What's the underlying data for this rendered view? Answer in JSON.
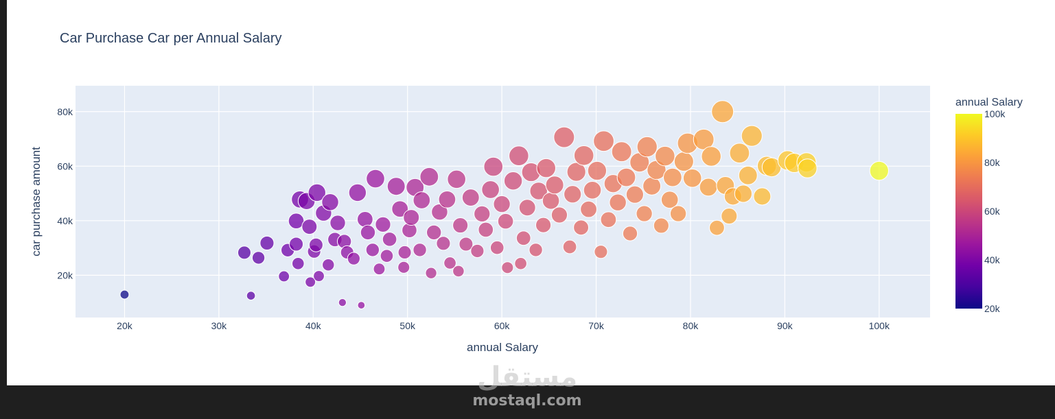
{
  "watermark": {
    "logo_text": "مستقل",
    "site": "mostaql.com"
  },
  "chart_data": {
    "type": "scatter",
    "title": "Car Purchase Car per Annual Salary",
    "xlabel": "annual Salary",
    "ylabel": "car purchase amount",
    "xlim": [
      14800,
      105400
    ],
    "ylim": [
      4500,
      89500
    ],
    "x_ticks": [
      20000,
      30000,
      40000,
      50000,
      60000,
      70000,
      80000,
      90000,
      100000
    ],
    "x_tick_labels": [
      "20k",
      "30k",
      "40k",
      "50k",
      "60k",
      "70k",
      "80k",
      "90k",
      "100k"
    ],
    "y_ticks": [
      20000,
      40000,
      60000,
      80000
    ],
    "y_tick_labels": [
      "20k",
      "40k",
      "60k",
      "80k"
    ],
    "grid": true,
    "marker_size_variable": "car purchase amount",
    "color_variable": "annual Salary",
    "colorbar": {
      "title": "annual Salary",
      "range": [
        20000,
        100000
      ],
      "ticks": [
        20000,
        40000,
        60000,
        80000,
        100000
      ],
      "tick_labels": [
        "20k",
        "40k",
        "60k",
        "80k",
        "100k"
      ],
      "colorscale": [
        "#0d0887",
        "#46039f",
        "#7201a8",
        "#9c179e",
        "#bd3786",
        "#d8576b",
        "#ed7953",
        "#fb9f3a",
        "#fdca26",
        "#f0f921"
      ],
      "position": "right"
    },
    "points": [
      {
        "x": 20000,
        "y": 12900
      },
      {
        "x": 33400,
        "y": 12500
      },
      {
        "x": 43100,
        "y": 10000
      },
      {
        "x": 45100,
        "y": 9000
      },
      {
        "x": 32700,
        "y": 28300
      },
      {
        "x": 34200,
        "y": 26400
      },
      {
        "x": 35100,
        "y": 31800
      },
      {
        "x": 36900,
        "y": 19600
      },
      {
        "x": 37300,
        "y": 29200
      },
      {
        "x": 38200,
        "y": 31400
      },
      {
        "x": 38400,
        "y": 24300
      },
      {
        "x": 38200,
        "y": 39900
      },
      {
        "x": 38600,
        "y": 47800
      },
      {
        "x": 39300,
        "y": 47200
      },
      {
        "x": 39600,
        "y": 37800
      },
      {
        "x": 39700,
        "y": 17500
      },
      {
        "x": 40100,
        "y": 28700
      },
      {
        "x": 40300,
        "y": 31100
      },
      {
        "x": 40600,
        "y": 19700
      },
      {
        "x": 40400,
        "y": 50300
      },
      {
        "x": 41100,
        "y": 42800
      },
      {
        "x": 41600,
        "y": 23800
      },
      {
        "x": 41800,
        "y": 46800
      },
      {
        "x": 42300,
        "y": 33100
      },
      {
        "x": 42600,
        "y": 39200
      },
      {
        "x": 43300,
        "y": 32400
      },
      {
        "x": 43600,
        "y": 28400
      },
      {
        "x": 44300,
        "y": 26100
      },
      {
        "x": 44700,
        "y": 50300
      },
      {
        "x": 45500,
        "y": 40500
      },
      {
        "x": 45800,
        "y": 35700
      },
      {
        "x": 46300,
        "y": 29300
      },
      {
        "x": 46600,
        "y": 55400
      },
      {
        "x": 47000,
        "y": 22300
      },
      {
        "x": 47400,
        "y": 38600
      },
      {
        "x": 47800,
        "y": 27100
      },
      {
        "x": 48100,
        "y": 33200
      },
      {
        "x": 48800,
        "y": 52600
      },
      {
        "x": 49200,
        "y": 44300
      },
      {
        "x": 49600,
        "y": 22900
      },
      {
        "x": 49700,
        "y": 28400
      },
      {
        "x": 50200,
        "y": 36500
      },
      {
        "x": 50400,
        "y": 41200
      },
      {
        "x": 50800,
        "y": 52200
      },
      {
        "x": 51300,
        "y": 29300
      },
      {
        "x": 51500,
        "y": 47500
      },
      {
        "x": 52300,
        "y": 56100
      },
      {
        "x": 52500,
        "y": 20800
      },
      {
        "x": 52800,
        "y": 35700
      },
      {
        "x": 53400,
        "y": 43200
      },
      {
        "x": 53800,
        "y": 31700
      },
      {
        "x": 54200,
        "y": 47800
      },
      {
        "x": 54500,
        "y": 24500
      },
      {
        "x": 55200,
        "y": 55200
      },
      {
        "x": 55400,
        "y": 21500
      },
      {
        "x": 55600,
        "y": 38300
      },
      {
        "x": 56200,
        "y": 31400
      },
      {
        "x": 56700,
        "y": 48500
      },
      {
        "x": 57400,
        "y": 28900
      },
      {
        "x": 57900,
        "y": 42500
      },
      {
        "x": 58300,
        "y": 36700
      },
      {
        "x": 58800,
        "y": 51400
      },
      {
        "x": 59100,
        "y": 59800
      },
      {
        "x": 59500,
        "y": 30100
      },
      {
        "x": 60000,
        "y": 46100
      },
      {
        "x": 60400,
        "y": 39800
      },
      {
        "x": 60600,
        "y": 22800
      },
      {
        "x": 61200,
        "y": 54600
      },
      {
        "x": 61800,
        "y": 63800
      },
      {
        "x": 62000,
        "y": 24300
      },
      {
        "x": 62300,
        "y": 33600
      },
      {
        "x": 62700,
        "y": 44800
      },
      {
        "x": 63100,
        "y": 57800
      },
      {
        "x": 63600,
        "y": 29300
      },
      {
        "x": 63900,
        "y": 50900
      },
      {
        "x": 64400,
        "y": 38400
      },
      {
        "x": 64700,
        "y": 59300
      },
      {
        "x": 65200,
        "y": 47300
      },
      {
        "x": 65600,
        "y": 53100
      },
      {
        "x": 66100,
        "y": 42100
      },
      {
        "x": 66600,
        "y": 70600
      },
      {
        "x": 67200,
        "y": 30400
      },
      {
        "x": 67500,
        "y": 49700
      },
      {
        "x": 67900,
        "y": 57900
      },
      {
        "x": 68400,
        "y": 37500
      },
      {
        "x": 68700,
        "y": 63900
      },
      {
        "x": 69200,
        "y": 44200
      },
      {
        "x": 69600,
        "y": 51200
      },
      {
        "x": 70100,
        "y": 58300
      },
      {
        "x": 70500,
        "y": 28600
      },
      {
        "x": 70800,
        "y": 69200
      },
      {
        "x": 71300,
        "y": 40400
      },
      {
        "x": 71800,
        "y": 53600
      },
      {
        "x": 72300,
        "y": 46700
      },
      {
        "x": 72700,
        "y": 65300
      },
      {
        "x": 73200,
        "y": 55900
      },
      {
        "x": 73600,
        "y": 35300
      },
      {
        "x": 74100,
        "y": 49600
      },
      {
        "x": 74600,
        "y": 61400
      },
      {
        "x": 75100,
        "y": 42600
      },
      {
        "x": 75400,
        "y": 67100
      },
      {
        "x": 75900,
        "y": 52700
      },
      {
        "x": 76400,
        "y": 58600
      },
      {
        "x": 76900,
        "y": 38200
      },
      {
        "x": 77300,
        "y": 63700
      },
      {
        "x": 77800,
        "y": 47700
      },
      {
        "x": 78100,
        "y": 55900
      },
      {
        "x": 78700,
        "y": 42600
      },
      {
        "x": 79300,
        "y": 61700
      },
      {
        "x": 79700,
        "y": 68400
      },
      {
        "x": 80200,
        "y": 55600
      },
      {
        "x": 81400,
        "y": 69800
      },
      {
        "x": 81900,
        "y": 52300
      },
      {
        "x": 82200,
        "y": 63600
      },
      {
        "x": 82800,
        "y": 37400
      },
      {
        "x": 83400,
        "y": 80000
      },
      {
        "x": 83700,
        "y": 52900
      },
      {
        "x": 84100,
        "y": 41700
      },
      {
        "x": 84500,
        "y": 48900
      },
      {
        "x": 85200,
        "y": 64800
      },
      {
        "x": 85600,
        "y": 49900
      },
      {
        "x": 86100,
        "y": 56600
      },
      {
        "x": 86500,
        "y": 71100
      },
      {
        "x": 87600,
        "y": 48900
      },
      {
        "x": 88100,
        "y": 60100
      },
      {
        "x": 88600,
        "y": 59600
      },
      {
        "x": 90300,
        "y": 62100
      },
      {
        "x": 91000,
        "y": 61200
      },
      {
        "x": 92300,
        "y": 61400
      },
      {
        "x": 92400,
        "y": 59200
      },
      {
        "x": 100000,
        "y": 58300
      }
    ]
  }
}
